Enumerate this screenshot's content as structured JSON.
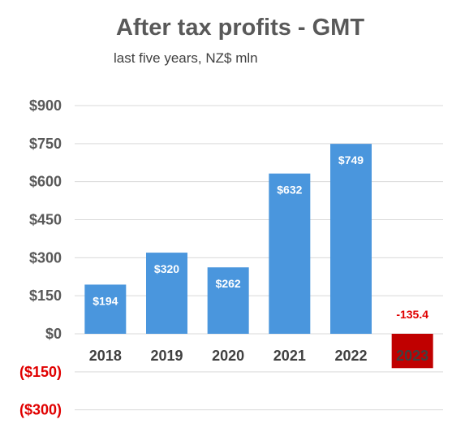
{
  "chart_data": {
    "type": "bar",
    "title": "After tax profits - GMT",
    "subtitle": "last five years, NZ$ mln",
    "categories": [
      "2018",
      "2019",
      "2020",
      "2021",
      "2022",
      "2023"
    ],
    "values": [
      194,
      320,
      262,
      632,
      749,
      -135.4
    ],
    "data_labels": [
      "$194",
      "$320",
      "$262",
      "$632",
      "$749",
      "-135.4"
    ],
    "ylim": [
      -300,
      900
    ],
    "yticks": [
      900,
      750,
      600,
      450,
      300,
      150,
      0,
      -150,
      -300
    ],
    "ytick_labels": [
      "$900",
      "$750",
      "$600",
      "$450",
      "$300",
      "$150",
      "$0",
      "($150)",
      "($300)"
    ],
    "grid": true,
    "legend": "none",
    "colors": {
      "positive_bar": "#4a96dd",
      "negative_bar": "#c00000",
      "negative_text": "#e00000",
      "axis_text": "#595959",
      "gridline": "#d9d9d9",
      "bar_label_text": "#ffffff"
    }
  }
}
